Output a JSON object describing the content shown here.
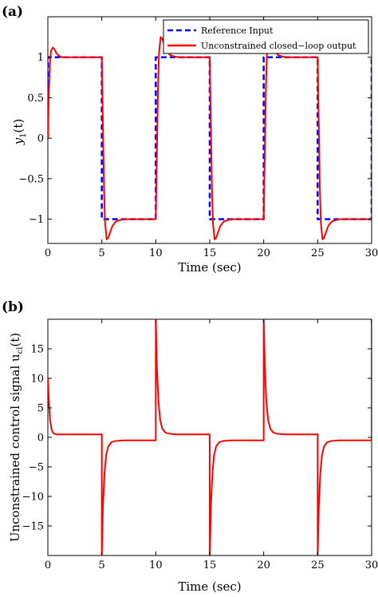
{
  "chart_data": [
    {
      "panel": "(a)",
      "type": "line",
      "xlabel": "Time (sec)",
      "ylabel_base": "y",
      "ylabel_sub": "1",
      "ylabel_arg": "(t)",
      "xlim": [
        0,
        30
      ],
      "ylim": [
        -1.3,
        1.5
      ],
      "xticks": [
        0,
        5,
        10,
        15,
        20,
        25,
        30
      ],
      "xtick_labels": [
        "0",
        "5",
        "10",
        "15",
        "20",
        "25",
        "30"
      ],
      "yticks": [
        -1,
        -0.5,
        0,
        0.5,
        1
      ],
      "ytick_labels": [
        "−1",
        "−0.5",
        "0",
        "0.5",
        "1"
      ],
      "grid": false,
      "legend_position": "top-right",
      "series": [
        {
          "name": "Reference Input",
          "color": "#0000ff",
          "style": "dashed",
          "x": [
            0,
            0,
            5,
            5,
            10,
            10,
            15,
            15,
            20,
            20,
            25,
            25,
            30,
            30
          ],
          "y": [
            0,
            1,
            1,
            -1,
            -1,
            1,
            1,
            -1,
            -1,
            1,
            1,
            -1,
            -1,
            1
          ]
        },
        {
          "name": "Unconstrained closed−loop output",
          "color": "#ff0000",
          "style": "solid",
          "x": [
            0,
            0.1,
            0.2,
            0.3,
            0.45,
            0.6,
            0.8,
            1.0,
            1.3,
            1.7,
            2.2,
            3,
            4,
            5,
            5.1,
            5.2,
            5.3,
            5.45,
            5.6,
            5.8,
            6.0,
            6.3,
            6.7,
            7.2,
            8,
            9,
            10,
            10.1,
            10.2,
            10.3,
            10.45,
            10.6,
            10.8,
            11.0,
            11.3,
            11.7,
            12.2,
            13,
            14,
            15,
            15.1,
            15.2,
            15.3,
            15.45,
            15.6,
            15.8,
            16.0,
            16.3,
            16.7,
            17.2,
            18,
            19,
            20,
            20.1,
            20.2,
            20.3,
            20.45,
            20.6,
            20.8,
            21.0,
            21.3,
            21.7,
            22.2,
            23,
            24,
            25,
            25.1,
            25.2,
            25.3,
            25.45,
            25.6,
            25.8,
            26.0,
            26.3,
            26.7,
            27.2,
            28,
            29,
            30
          ],
          "y": [
            0,
            0.6,
            0.95,
            1.08,
            1.12,
            1.1,
            1.05,
            1.02,
            1.0,
            1.0,
            1.0,
            1.0,
            1.0,
            1.0,
            0.2,
            -0.6,
            -1.05,
            -1.25,
            -1.23,
            -1.15,
            -1.08,
            -1.03,
            -1.01,
            -1.0,
            -1.0,
            -1.0,
            -1.0,
            -0.2,
            0.6,
            1.05,
            1.25,
            1.23,
            1.15,
            1.08,
            1.03,
            1.01,
            1.0,
            1.0,
            1.0,
            1.0,
            0.2,
            -0.6,
            -1.05,
            -1.25,
            -1.23,
            -1.15,
            -1.08,
            -1.03,
            -1.01,
            -1.0,
            -1.0,
            -1.0,
            -1.0,
            -0.2,
            0.6,
            1.05,
            1.25,
            1.23,
            1.15,
            1.08,
            1.03,
            1.01,
            1.0,
            1.0,
            1.0,
            1.0,
            0.2,
            -0.6,
            -1.05,
            -1.25,
            -1.23,
            -1.15,
            -1.08,
            -1.03,
            -1.01,
            -1.0,
            -1.0,
            -1.0,
            -1.0
          ]
        }
      ]
    },
    {
      "panel": "(b)",
      "type": "line",
      "xlabel": "Time (sec)",
      "ylabel_base": "Unconstrained control signal u",
      "ylabel_sub": "cl",
      "ylabel_arg": "(t)",
      "xlim": [
        0,
        30
      ],
      "ylim": [
        -20,
        20
      ],
      "xticks": [
        0,
        5,
        10,
        15,
        20,
        25,
        30
      ],
      "xtick_labels": [
        "0",
        "5",
        "10",
        "15",
        "20",
        "25",
        "30"
      ],
      "yticks": [
        -15,
        -10,
        -5,
        0,
        5,
        10,
        15
      ],
      "ytick_labels": [
        "−15",
        "−10",
        "−5",
        "0",
        "5",
        "10",
        "15"
      ],
      "grid": false,
      "series": [
        {
          "color": "#ff0000",
          "style": "solid",
          "x": [
            0,
            0.1,
            0.2,
            0.35,
            0.5,
            0.8,
            1.2,
            2,
            5,
            5.001,
            5.1,
            5.25,
            5.4,
            5.6,
            5.9,
            6.3,
            7,
            10,
            10.001,
            10.1,
            10.25,
            10.4,
            10.6,
            10.9,
            11.3,
            12,
            15,
            15.001,
            15.1,
            15.25,
            15.4,
            15.6,
            15.9,
            16.3,
            17,
            20,
            20.001,
            20.1,
            20.25,
            20.4,
            20.6,
            20.9,
            21.3,
            22,
            25,
            25.001,
            25.1,
            25.25,
            25.4,
            25.6,
            25.9,
            26.3,
            27,
            30,
            30.001
          ],
          "y": [
            10,
            6,
            3,
            1.3,
            0.7,
            0.5,
            0.5,
            0.5,
            0.5,
            -20,
            -12,
            -6,
            -3,
            -1.5,
            -0.8,
            -0.6,
            -0.5,
            -0.5,
            20,
            12,
            6,
            3,
            1.5,
            0.8,
            0.6,
            0.5,
            0.5,
            -20,
            -12,
            -6,
            -3,
            -1.5,
            -0.8,
            -0.6,
            -0.5,
            -0.5,
            20,
            12,
            6,
            3,
            1.5,
            0.8,
            0.6,
            0.5,
            0.5,
            -20,
            -12,
            -6,
            -3,
            -1.5,
            -0.8,
            -0.6,
            -0.5,
            -0.5,
            20
          ]
        }
      ]
    }
  ]
}
